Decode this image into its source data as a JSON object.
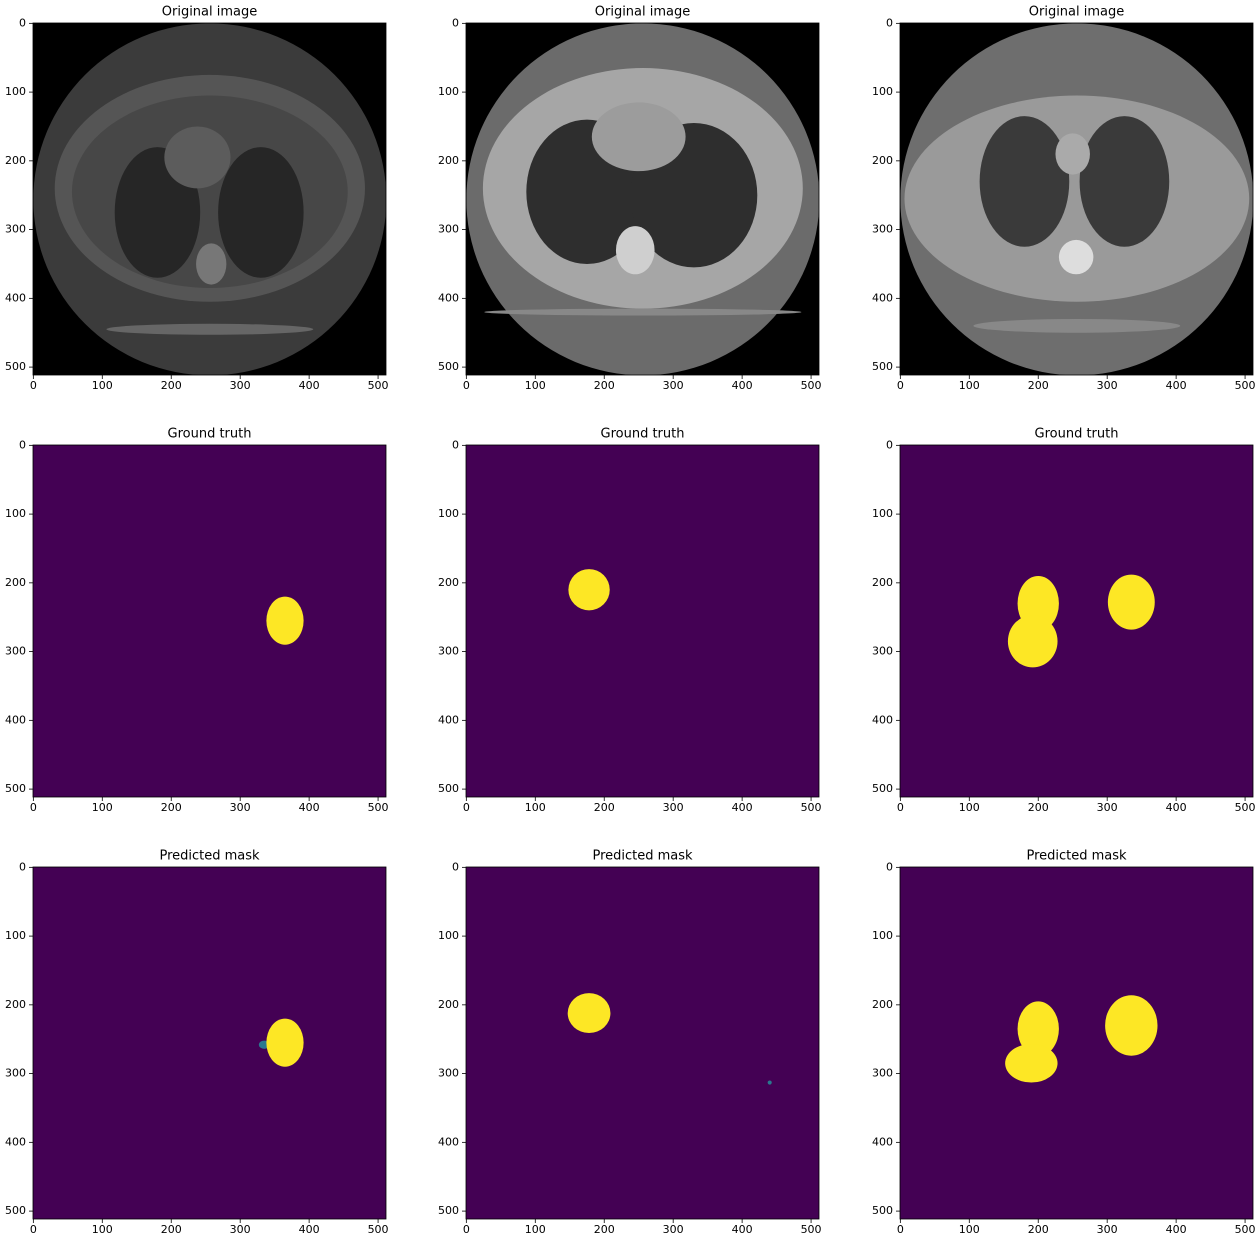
{
  "chart_data": [
    {
      "type": "image",
      "title": "Original image",
      "xlim": [
        -0.5,
        511.5
      ],
      "ylim": [
        511.5,
        -0.5
      ],
      "xticks": [
        0,
        100,
        200,
        300,
        400,
        500
      ],
      "yticks": [
        0,
        100,
        200,
        300,
        400,
        500
      ]
    },
    {
      "type": "image",
      "title": "Original image",
      "xlim": [
        -0.5,
        511.5
      ],
      "ylim": [
        511.5,
        -0.5
      ],
      "xticks": [
        0,
        100,
        200,
        300,
        400,
        500
      ],
      "yticks": [
        0,
        100,
        200,
        300,
        400,
        500
      ]
    },
    {
      "type": "image",
      "title": "Original image",
      "xlim": [
        -0.5,
        511.5
      ],
      "ylim": [
        511.5,
        -0.5
      ],
      "xticks": [
        0,
        100,
        200,
        300,
        400,
        500
      ],
      "yticks": [
        0,
        100,
        200,
        300,
        400,
        500
      ]
    },
    {
      "type": "image",
      "title": "Ground truth",
      "xlim": [
        -0.5,
        511.5
      ],
      "ylim": [
        511.5,
        -0.5
      ],
      "xticks": [
        0,
        100,
        200,
        300,
        400,
        500
      ],
      "yticks": [
        0,
        100,
        200,
        300,
        400,
        500
      ]
    },
    {
      "type": "image",
      "title": "Ground truth",
      "xlim": [
        -0.5,
        511.5
      ],
      "ylim": [
        511.5,
        -0.5
      ],
      "xticks": [
        0,
        100,
        200,
        300,
        400,
        500
      ],
      "yticks": [
        0,
        100,
        200,
        300,
        400,
        500
      ]
    },
    {
      "type": "image",
      "title": "Ground truth",
      "xlim": [
        -0.5,
        511.5
      ],
      "ylim": [
        511.5,
        -0.5
      ],
      "xticks": [
        0,
        100,
        200,
        300,
        400,
        500
      ],
      "yticks": [
        0,
        100,
        200,
        300,
        400,
        500
      ]
    },
    {
      "type": "image",
      "title": "Predicted mask",
      "xlim": [
        -0.5,
        511.5
      ],
      "ylim": [
        511.5,
        -0.5
      ],
      "xticks": [
        0,
        100,
        200,
        300,
        400,
        500
      ],
      "yticks": [
        0,
        100,
        200,
        300,
        400,
        500
      ]
    },
    {
      "type": "image",
      "title": "Predicted mask",
      "xlim": [
        -0.5,
        511.5
      ],
      "ylim": [
        511.5,
        -0.5
      ],
      "xticks": [
        0,
        100,
        200,
        300,
        400,
        500
      ],
      "yticks": [
        0,
        100,
        200,
        300,
        400,
        500
      ]
    },
    {
      "type": "image",
      "title": "Predicted mask",
      "xlim": [
        -0.5,
        511.5
      ],
      "ylim": [
        511.5,
        -0.5
      ],
      "xticks": [
        0,
        100,
        200,
        300,
        400,
        500
      ],
      "yticks": [
        0,
        100,
        200,
        300,
        400,
        500
      ]
    }
  ]
}
